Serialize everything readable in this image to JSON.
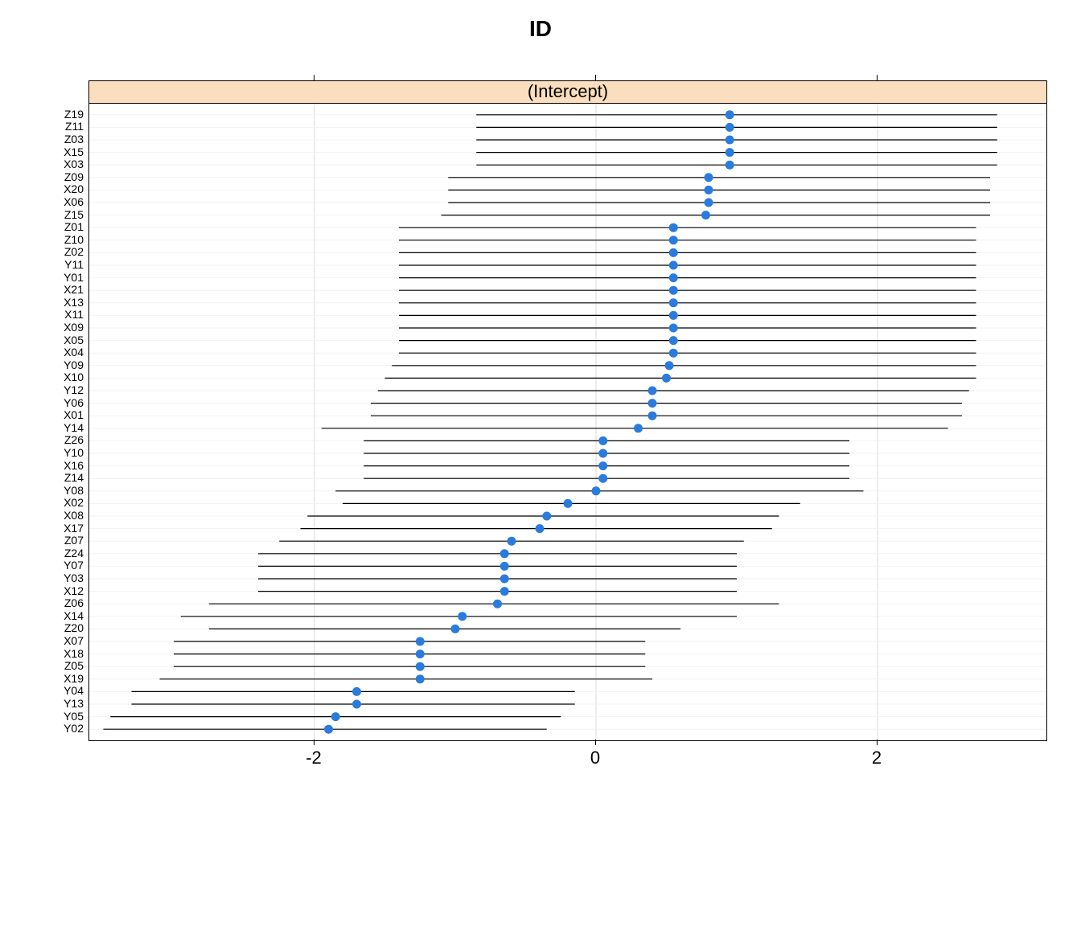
{
  "chart": {
    "type": "caterpillar",
    "title": "ID",
    "strip_label": "(Intercept)",
    "title_fontsize": 28,
    "strip_fontsize": 22,
    "axis_fontsize": 22,
    "ylabel_fontsize": 14,
    "background_color": "#ffffff",
    "strip_background": "#fadebd",
    "panel_border_color": "#000000",
    "grid_color": "#d9d9d9",
    "errorbar_color": "#000000",
    "point_color": "#2a7bde",
    "point_radius": 5.5,
    "errorbar_width": 1.2,
    "x_axis": {
      "min": -3.6,
      "max": 3.2,
      "ticks": [
        -2,
        0,
        2
      ]
    },
    "data": [
      {
        "id": "Z19",
        "est": 0.95,
        "lo": -0.85,
        "hi": 2.85
      },
      {
        "id": "Z11",
        "est": 0.95,
        "lo": -0.85,
        "hi": 2.85
      },
      {
        "id": "Z03",
        "est": 0.95,
        "lo": -0.85,
        "hi": 2.85
      },
      {
        "id": "X15",
        "est": 0.95,
        "lo": -0.85,
        "hi": 2.85
      },
      {
        "id": "X03",
        "est": 0.95,
        "lo": -0.85,
        "hi": 2.85
      },
      {
        "id": "Z09",
        "est": 0.8,
        "lo": -1.05,
        "hi": 2.8
      },
      {
        "id": "X20",
        "est": 0.8,
        "lo": -1.05,
        "hi": 2.8
      },
      {
        "id": "X06",
        "est": 0.8,
        "lo": -1.05,
        "hi": 2.8
      },
      {
        "id": "Z15",
        "est": 0.78,
        "lo": -1.1,
        "hi": 2.8
      },
      {
        "id": "Z01",
        "est": 0.55,
        "lo": -1.4,
        "hi": 2.7
      },
      {
        "id": "Z10",
        "est": 0.55,
        "lo": -1.4,
        "hi": 2.7
      },
      {
        "id": "Z02",
        "est": 0.55,
        "lo": -1.4,
        "hi": 2.7
      },
      {
        "id": "Y11",
        "est": 0.55,
        "lo": -1.4,
        "hi": 2.7
      },
      {
        "id": "Y01",
        "est": 0.55,
        "lo": -1.4,
        "hi": 2.7
      },
      {
        "id": "X21",
        "est": 0.55,
        "lo": -1.4,
        "hi": 2.7
      },
      {
        "id": "X13",
        "est": 0.55,
        "lo": -1.4,
        "hi": 2.7
      },
      {
        "id": "X11",
        "est": 0.55,
        "lo": -1.4,
        "hi": 2.7
      },
      {
        "id": "X09",
        "est": 0.55,
        "lo": -1.4,
        "hi": 2.7
      },
      {
        "id": "X05",
        "est": 0.55,
        "lo": -1.4,
        "hi": 2.7
      },
      {
        "id": "X04",
        "est": 0.55,
        "lo": -1.4,
        "hi": 2.7
      },
      {
        "id": "Y09",
        "est": 0.52,
        "lo": -1.45,
        "hi": 2.7
      },
      {
        "id": "X10",
        "est": 0.5,
        "lo": -1.5,
        "hi": 2.7
      },
      {
        "id": "Y12",
        "est": 0.4,
        "lo": -1.55,
        "hi": 2.65
      },
      {
        "id": "Y06",
        "est": 0.4,
        "lo": -1.6,
        "hi": 2.6
      },
      {
        "id": "X01",
        "est": 0.4,
        "lo": -1.6,
        "hi": 2.6
      },
      {
        "id": "Y14",
        "est": 0.3,
        "lo": -1.95,
        "hi": 2.5
      },
      {
        "id": "Z26",
        "est": 0.05,
        "lo": -1.65,
        "hi": 1.8
      },
      {
        "id": "Y10",
        "est": 0.05,
        "lo": -1.65,
        "hi": 1.8
      },
      {
        "id": "X16",
        "est": 0.05,
        "lo": -1.65,
        "hi": 1.8
      },
      {
        "id": "Z14",
        "est": 0.05,
        "lo": -1.65,
        "hi": 1.8
      },
      {
        "id": "Y08",
        "est": 0.0,
        "lo": -1.85,
        "hi": 1.9
      },
      {
        "id": "X02",
        "est": -0.2,
        "lo": -1.8,
        "hi": 1.45
      },
      {
        "id": "X08",
        "est": -0.35,
        "lo": -2.05,
        "hi": 1.3
      },
      {
        "id": "X17",
        "est": -0.4,
        "lo": -2.1,
        "hi": 1.25
      },
      {
        "id": "Z07",
        "est": -0.6,
        "lo": -2.25,
        "hi": 1.05
      },
      {
        "id": "Z24",
        "est": -0.65,
        "lo": -2.4,
        "hi": 1.0
      },
      {
        "id": "Y07",
        "est": -0.65,
        "lo": -2.4,
        "hi": 1.0
      },
      {
        "id": "Y03",
        "est": -0.65,
        "lo": -2.4,
        "hi": 1.0
      },
      {
        "id": "X12",
        "est": -0.65,
        "lo": -2.4,
        "hi": 1.0
      },
      {
        "id": "Z06",
        "est": -0.7,
        "lo": -2.75,
        "hi": 1.3
      },
      {
        "id": "X14",
        "est": -0.95,
        "lo": -2.95,
        "hi": 1.0
      },
      {
        "id": "Z20",
        "est": -1.0,
        "lo": -2.75,
        "hi": 0.6
      },
      {
        "id": "X07",
        "est": -1.25,
        "lo": -3.0,
        "hi": 0.35
      },
      {
        "id": "X18",
        "est": -1.25,
        "lo": -3.0,
        "hi": 0.35
      },
      {
        "id": "Z05",
        "est": -1.25,
        "lo": -3.0,
        "hi": 0.35
      },
      {
        "id": "X19",
        "est": -1.25,
        "lo": -3.1,
        "hi": 0.4
      },
      {
        "id": "Y04",
        "est": -1.7,
        "lo": -3.3,
        "hi": -0.15
      },
      {
        "id": "Y13",
        "est": -1.7,
        "lo": -3.3,
        "hi": -0.15
      },
      {
        "id": "Y05",
        "est": -1.85,
        "lo": -3.45,
        "hi": -0.25
      },
      {
        "id": "Y02",
        "est": -1.9,
        "lo": -3.5,
        "hi": -0.35
      }
    ]
  }
}
